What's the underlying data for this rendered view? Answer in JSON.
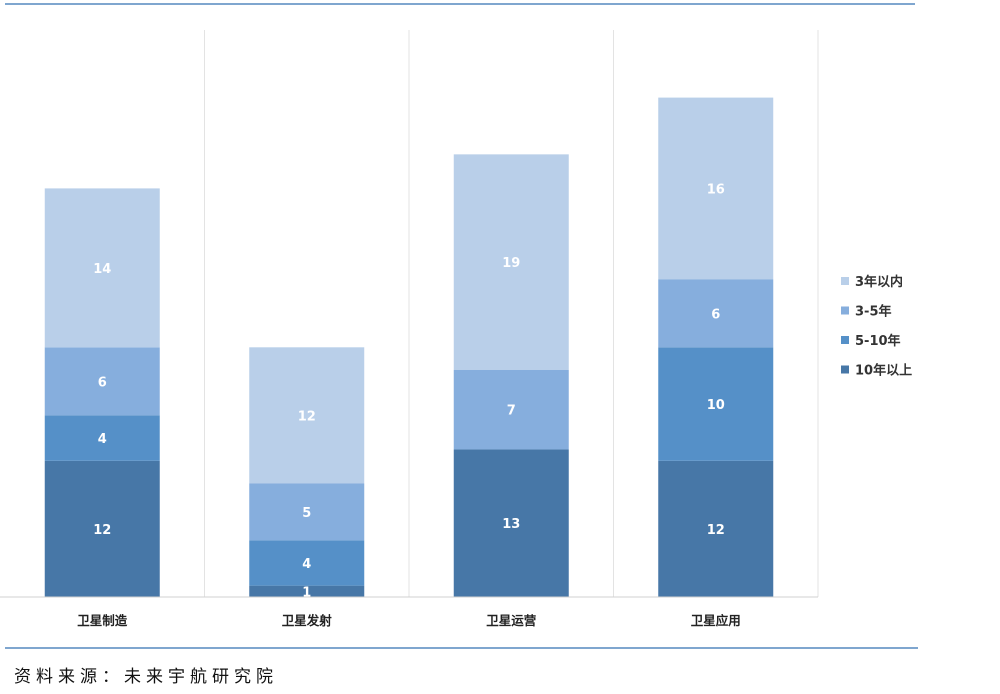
{
  "source_note": "资料来源：未来宇航研究院",
  "chart_data": {
    "type": "bar",
    "stacked": true,
    "categories": [
      "卫星制造",
      "卫星发射",
      "卫星运营",
      "卫星应用"
    ],
    "series": [
      {
        "name": "10年以上",
        "values": [
          12,
          1,
          13,
          12
        ],
        "color": "#4777a7"
      },
      {
        "name": "5-10年",
        "values": [
          4,
          4,
          0,
          10
        ],
        "color": "#5590c8"
      },
      {
        "name": "3-5年",
        "values": [
          6,
          5,
          7,
          6
        ],
        "color": "#86aedd"
      },
      {
        "name": "3年以内",
        "values": [
          14,
          12,
          19,
          16
        ],
        "color": "#b9cfe9"
      }
    ],
    "legend_order": [
      "3年以内",
      "3-5年",
      "5-10年",
      "10年以上"
    ],
    "legend_position": "right",
    "ylim": [
      0,
      50
    ],
    "grid": false,
    "title": "",
    "xlabel": "",
    "ylabel": ""
  }
}
